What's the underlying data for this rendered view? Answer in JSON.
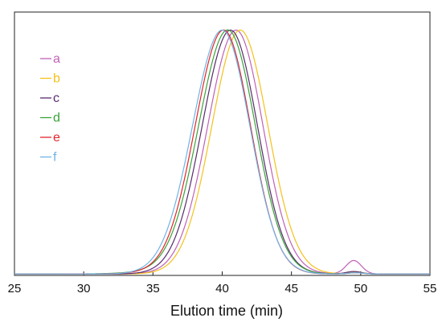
{
  "chart_data": {
    "type": "line",
    "title": "",
    "xlabel": "Elution time (min)",
    "ylabel": "",
    "xlim": [
      25,
      55
    ],
    "ylim": [
      0,
      1
    ],
    "xticks": [
      "25",
      "30",
      "35",
      "40",
      "45",
      "50",
      "55"
    ],
    "grid": false,
    "legend_position": "top-left",
    "series": [
      {
        "name": "a",
        "color": "#c061b7",
        "peak": 41.0,
        "sigma_left": 2.05,
        "sigma_right": 1.95,
        "small_peak": 49.5,
        "small_height": 0.055,
        "baseline": 0.0
      },
      {
        "name": "b",
        "color": "#f3c21b",
        "peak": 41.3,
        "sigma_left": 2.05,
        "sigma_right": 2.0,
        "small_peak": 49.6,
        "small_height": 0.008,
        "baseline": 0.0
      },
      {
        "name": "c",
        "color": "#5a2a6e",
        "peak": 40.6,
        "sigma_left": 2.05,
        "sigma_right": 1.95,
        "small_peak": 49.5,
        "small_height": 0.01,
        "baseline": 0.0
      },
      {
        "name": "d",
        "color": "#3aa33a",
        "peak": 40.4,
        "sigma_left": 2.1,
        "sigma_right": 2.0,
        "small_peak": 49.7,
        "small_height": 0.005,
        "baseline": 0.008
      },
      {
        "name": "e",
        "color": "#e0262b",
        "peak": 40.1,
        "sigma_left": 2.05,
        "sigma_right": 1.95,
        "small_peak": 49.6,
        "small_height": 0.005,
        "baseline": 0.004
      },
      {
        "name": "f",
        "color": "#6fb4e8",
        "peak": 40.0,
        "sigma_left": 2.15,
        "sigma_right": 2.0,
        "small_peak": 49.6,
        "small_height": 0.005,
        "baseline": 0.0
      }
    ]
  }
}
